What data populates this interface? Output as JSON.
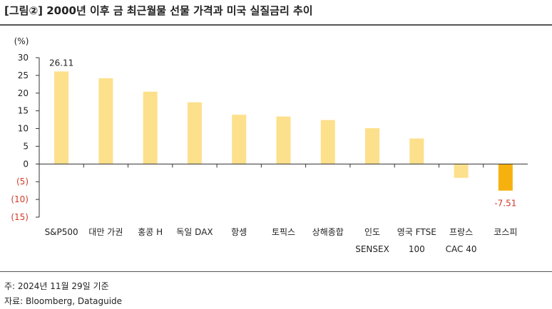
{
  "header": {
    "title": "[그림②] 2000년 이후 금 최근월물 선물 가격과 미국 실질금리 추이"
  },
  "footer": {
    "note": "주: 2024년 11월 29일 기준",
    "source": "자료: Bloomberg, Dataguide"
  },
  "colors": {
    "bar": "#fde08b",
    "bar_highlight": "#f6b10f",
    "negative_text": "#d23b2b",
    "axis": "#333333"
  },
  "chart_data": {
    "type": "bar",
    "title": "",
    "ylabel": "(%)",
    "xlabel": "",
    "ylim": [
      -15,
      30
    ],
    "yticks": [
      {
        "value": 30,
        "label": "30"
      },
      {
        "value": 25,
        "label": "25"
      },
      {
        "value": 20,
        "label": "20"
      },
      {
        "value": 15,
        "label": "15"
      },
      {
        "value": 10,
        "label": "10"
      },
      {
        "value": 5,
        "label": "5"
      },
      {
        "value": 0,
        "label": "0"
      },
      {
        "value": -5,
        "label": "(5)"
      },
      {
        "value": -10,
        "label": "(10)"
      },
      {
        "value": -15,
        "label": "(15)"
      }
    ],
    "categories": [
      [
        "S&P500"
      ],
      [
        "대만 가권"
      ],
      [
        "홍콩 H"
      ],
      [
        "독일 DAX"
      ],
      [
        "항셍"
      ],
      [
        "토픽스"
      ],
      [
        "상해종합"
      ],
      [
        "인도",
        "SENSEX"
      ],
      [
        "영국 FTSE",
        "100"
      ],
      [
        "프랑스",
        "CAC 40"
      ],
      [
        "코스피"
      ]
    ],
    "values": [
      26.11,
      24.2,
      20.4,
      17.4,
      13.9,
      13.4,
      12.4,
      10.1,
      7.2,
      -3.9,
      -7.51
    ],
    "highlight_index": 10,
    "data_labels": [
      {
        "index": 0,
        "text": "26.11"
      },
      {
        "index": 10,
        "text": "-7.51"
      }
    ],
    "grid": false,
    "legend": "none"
  }
}
